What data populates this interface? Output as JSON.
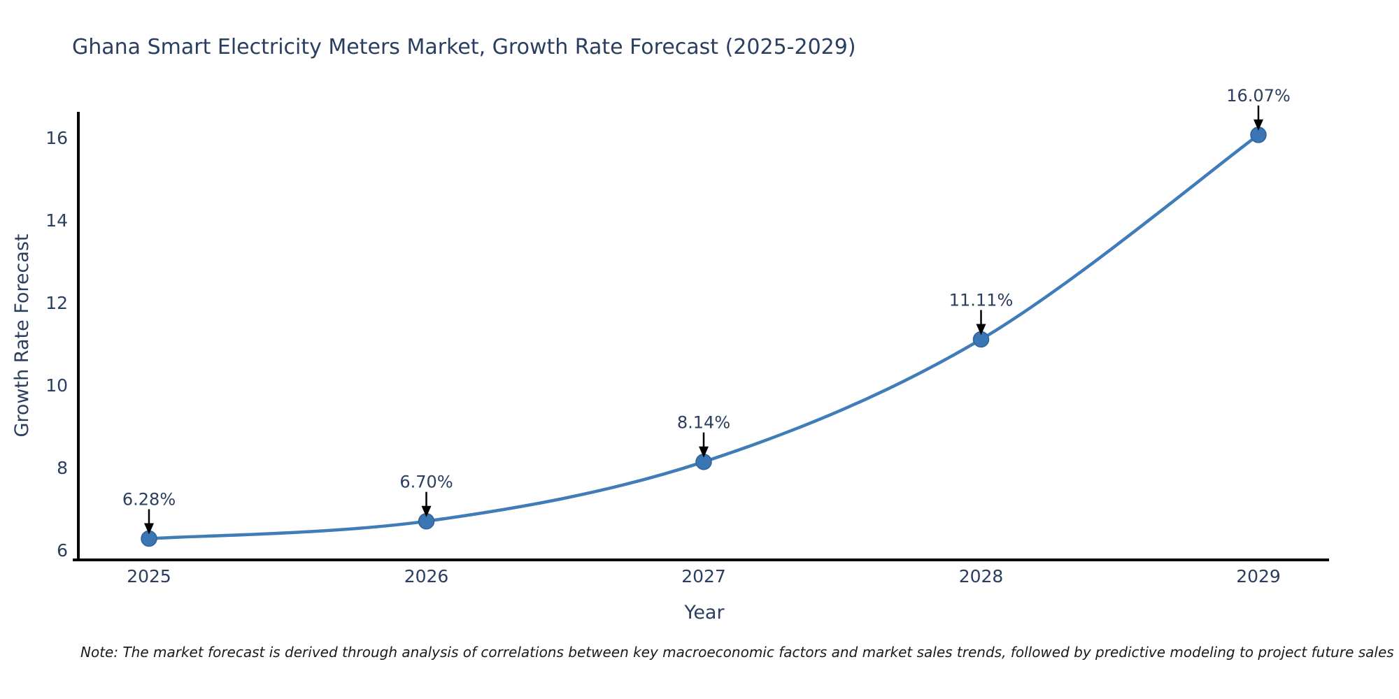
{
  "chart_data": {
    "type": "line",
    "title": "Ghana Smart Electricity Meters Market, Growth Rate Forecast (2025-2029)",
    "xlabel": "Year",
    "ylabel": "Growth Rate Forecast",
    "x": [
      "2025",
      "2026",
      "2027",
      "2028",
      "2029"
    ],
    "series": [
      {
        "name": "Growth Rate Forecast",
        "values": [
          6.28,
          6.7,
          8.14,
          11.11,
          16.07
        ]
      }
    ],
    "point_labels": [
      "6.28%",
      "6.70%",
      "8.14%",
      "11.11%",
      "16.07%"
    ],
    "yticks": [
      6,
      8,
      10,
      12,
      14,
      16
    ],
    "ylim": [
      5.78,
      16.61
    ],
    "grid": false,
    "legend": "none",
    "line_shape": "spline",
    "annotation_style": "label-above-with-down-arrow",
    "colors": {
      "line": "#3f7cb8",
      "marker": "#3a76b4",
      "marker_edge": "#2e6396",
      "axis_line": "#000000",
      "text": "#2a3f5f",
      "arrow": "#000000",
      "note": "#1a1a1a",
      "background": "#ffffff"
    }
  },
  "note": "Note: The market forecast is derived through analysis of correlations between key macroeconomic factors and market sales trends, followed by predictive modeling to project future sales"
}
